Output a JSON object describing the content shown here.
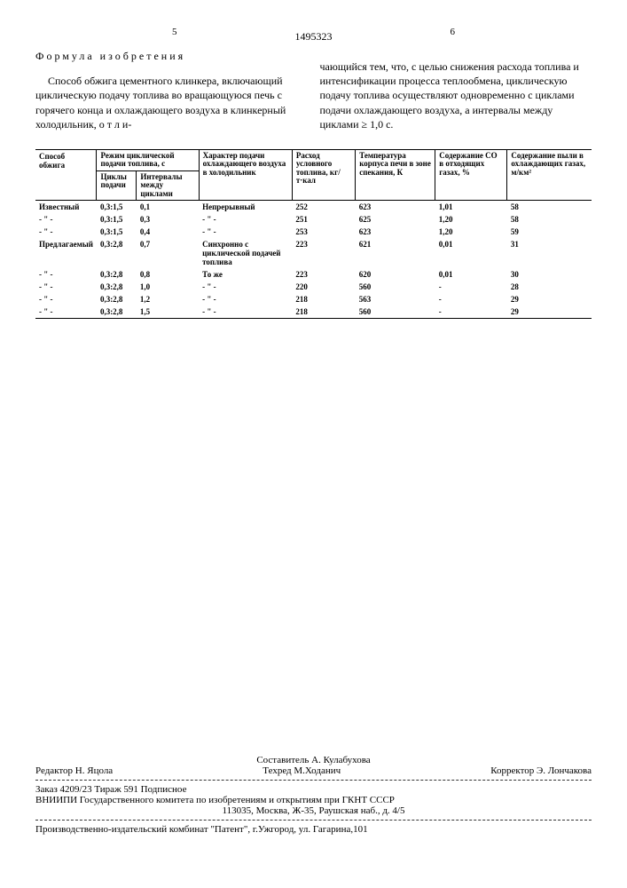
{
  "header": {
    "page_left": "5",
    "doc_number": "1495323",
    "page_right": "6"
  },
  "left_text": {
    "formula_heading": "Формула изобретения",
    "p1": "Способ обжига цементного клинкера, включающий циклическую подачу топлива во вращающуюся печь с горячего конца и охлаждающего воздуха в клинкерный холодильник, о т л и-"
  },
  "right_text": {
    "p1": "чающийся тем, что, с целью снижения расхода топлива и интенсификации процесса теплообмена, циклическую подачу топлива осуществляют одновременно с циклами подачи охлаждающего воздуха, а интервалы между циклами ≥ 1,0 с."
  },
  "table": {
    "headers": {
      "c1": "Способ обжига",
      "c2_top": "Режим циклической подачи топлива, с",
      "c2a": "Циклы подачи",
      "c2b": "Интервалы между циклами",
      "c3": "Характер подачи охлаждающего воздуха в холодильник",
      "c4": "Расход условного топлива, кг/т·кал",
      "c5": "Температура корпуса печи в зоне спекания, К",
      "c6": "Содержание CO в отходящих газах, %",
      "c7": "Содержание пыли в охлаждающих газах, м/км²"
    },
    "rows": [
      {
        "c1": "Известный",
        "c2a": "0,3:1,5",
        "c2b": "0,1",
        "c3": "Непрерывный",
        "c4": "252",
        "c5": "623",
        "c6": "1,01",
        "c7": "58"
      },
      {
        "c1": "- \" -",
        "c2a": "0,3:1,5",
        "c2b": "0,3",
        "c3": "- \" -",
        "c4": "251",
        "c5": "625",
        "c6": "1,20",
        "c7": "58"
      },
      {
        "c1": "- \" -",
        "c2a": "0,3:1,5",
        "c2b": "0,4",
        "c3": "- \" -",
        "c4": "253",
        "c5": "623",
        "c6": "1,20",
        "c7": "59"
      },
      {
        "c1": "Предлагаемый",
        "c2a": "0,3:2,8",
        "c2b": "0,7",
        "c3": "Синхронно с циклической подачей топлива",
        "c4": "223",
        "c5": "621",
        "c6": "0,01",
        "c7": "31"
      },
      {
        "c1": "- \" -",
        "c2a": "0,3:2,8",
        "c2b": "0,8",
        "c3": "То же",
        "c4": "223",
        "c5": "620",
        "c6": "0,01",
        "c7": "30"
      },
      {
        "c1": "- \" -",
        "c2a": "0,3:2,8",
        "c2b": "1,0",
        "c3": "- \" -",
        "c4": "220",
        "c5": "560",
        "c6": "-",
        "c7": "28"
      },
      {
        "c1": "- \" -",
        "c2a": "0,3:2,8",
        "c2b": "1,2",
        "c3": "- \" -",
        "c4": "218",
        "c5": "563",
        "c6": "-",
        "c7": "29"
      },
      {
        "c1": "- \" -",
        "c2a": "0,3:2,8",
        "c2b": "1,5",
        "c3": "- \" -",
        "c4": "218",
        "c5": "560",
        "c6": "-",
        "c7": "29"
      }
    ]
  },
  "footer": {
    "row1_left": "Редактор Н. Яцола",
    "row1_center_top": "Составитель А. Кулабухова",
    "row1_center": "Техред М.Ходанич",
    "row1_right": "Корректор Э. Лончакова",
    "row2": "Заказ 4209/23            Тираж 591              Подписное",
    "row3": "ВНИИПИ Государственного комитета по изобретениям и открытиям при ГКНТ СССР",
    "row4": "113035, Москва, Ж-35, Раушская наб., д. 4/5",
    "row5": "Производственно-издательский комбинат \"Патент\", г.Ужгород, ул. Гагарина,101"
  }
}
